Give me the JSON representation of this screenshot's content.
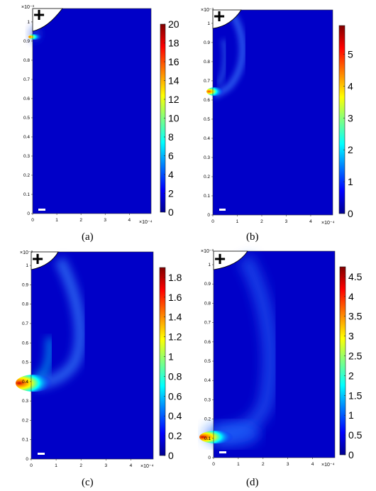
{
  "colorscale": [
    "#00008f",
    "#0000ff",
    "#0080ff",
    "#00ffff",
    "#80ff80",
    "#ffff00",
    "#ff8000",
    "#ff0000",
    "#800000"
  ],
  "panels": [
    {
      "caption": "(a)",
      "y_exponent": "×10⁻³",
      "x_exponent": "×10⁻⁴",
      "y_ticks": [
        "0",
        "0.1",
        "0.2",
        "0.3",
        "0.4",
        "0.5",
        "0.6",
        "0.7",
        "0.8",
        "0.9",
        "1"
      ],
      "x_ticks": [
        "0",
        "1",
        "2",
        "3",
        "4"
      ],
      "colorbar_ticks": [
        "0",
        "2",
        "4",
        "6",
        "8",
        "10",
        "12",
        "14",
        "16",
        "18",
        "20"
      ],
      "source_symbol": "+"
    },
    {
      "caption": "(b)",
      "y_exponent": "×10⁻³",
      "x_exponent": "×10⁻⁴",
      "y_ticks": [
        "0",
        "0.1",
        "0.2",
        "0.3",
        "0.4",
        "0.5",
        "0.6",
        "0.7",
        "0.8",
        "0.9",
        "1"
      ],
      "x_ticks": [
        "0",
        "1",
        "2",
        "3",
        "4"
      ],
      "colorbar_ticks": [
        "0",
        "1",
        "2",
        "3",
        "4",
        "5"
      ],
      "source_symbol": "+"
    },
    {
      "caption": "(c)",
      "y_exponent": "×10⁻³",
      "x_exponent": "×10⁻⁴",
      "y_ticks": [
        "0",
        "0.1",
        "0.2",
        "0.3",
        "0.4",
        "0.5",
        "0.6",
        "0.7",
        "0.8",
        "0.9",
        "1"
      ],
      "x_ticks": [
        "0",
        "1",
        "2",
        "3",
        "4"
      ],
      "colorbar_ticks": [
        "0",
        "0.2",
        "0.4",
        "0.6",
        "0.8",
        "1",
        "1.2",
        "1.4",
        "1.6",
        "1.8"
      ],
      "source_symbol": "+"
    },
    {
      "caption": "(d)",
      "y_exponent": "×10⁻³",
      "x_exponent": "×10⁻⁴",
      "y_ticks": [
        "0",
        "0.1",
        "0.2",
        "0.3",
        "0.4",
        "0.5",
        "0.6",
        "0.7",
        "0.8",
        "0.9",
        "1"
      ],
      "x_ticks": [
        "0",
        "1",
        "2",
        "3",
        "4"
      ],
      "colorbar_ticks": [
        "0",
        "0.5",
        "1",
        "1.5",
        "2",
        "2.5",
        "3",
        "3.5",
        "4",
        "4.5"
      ],
      "source_symbol": "+"
    }
  ]
}
